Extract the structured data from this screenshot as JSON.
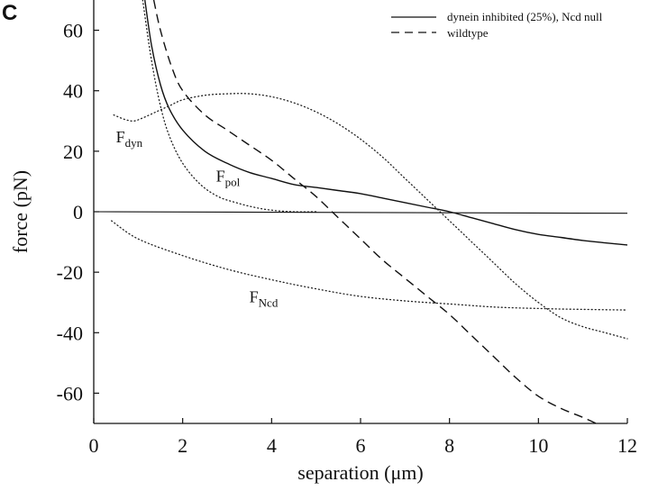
{
  "panel_label": "C",
  "chart_data": {
    "type": "line",
    "title": "",
    "xlabel": "separation (μm)",
    "ylabel": "force (pN)",
    "xlim": [
      0,
      12
    ],
    "ylim": [
      -70,
      70
    ],
    "xticks": [
      0,
      2,
      4,
      6,
      8,
      10,
      12
    ],
    "yticks": [
      60,
      40,
      20,
      0,
      -20,
      -40,
      -60
    ],
    "grid": false,
    "legend_position": "top-right",
    "legend": [
      {
        "label": "dynein inhibited (25%), Ncd null",
        "style": "solid"
      },
      {
        "label": "wildtype",
        "style": "dashed"
      }
    ],
    "series": [
      {
        "name": "dynein inhibited (25%), Ncd null",
        "style": "solid",
        "x": [
          1.15,
          1.3,
          1.5,
          1.7,
          2.0,
          2.5,
          3.0,
          3.5,
          4.0,
          4.5,
          5.0,
          5.5,
          6.0,
          6.5,
          7.0,
          7.5,
          8.0,
          8.5,
          9.0,
          9.5,
          10.0,
          10.5,
          11.0,
          11.5,
          12.0
        ],
        "y": [
          70,
          55,
          42,
          34,
          27,
          20,
          16,
          13,
          11,
          9,
          8,
          7,
          6,
          4.5,
          3,
          1.5,
          0,
          -2,
          -4,
          -6,
          -7.5,
          -8.5,
          -9.5,
          -10.3,
          -11
        ]
      },
      {
        "name": "wildtype",
        "style": "dashed",
        "x": [
          1.35,
          1.5,
          1.75,
          2.0,
          2.5,
          3.0,
          3.5,
          4.0,
          4.5,
          5.0,
          5.5,
          6.0,
          6.5,
          7.0,
          7.5,
          8.0,
          8.5,
          9.0,
          9.5,
          10.0,
          10.5,
          11.0,
          11.3
        ],
        "y": [
          70,
          60,
          48,
          40,
          32,
          27,
          22,
          17,
          11,
          5,
          -2,
          -9,
          -16,
          -22,
          -28,
          -34,
          -41,
          -48,
          -55,
          -61,
          -65,
          -68,
          -70
        ]
      },
      {
        "name": "F_dyn",
        "style": "dotted",
        "x": [
          0.45,
          0.7,
          0.9,
          1.1,
          1.4,
          1.7,
          2.0,
          2.5,
          3.0,
          3.5,
          4.0,
          4.5,
          5.0,
          5.5,
          6.0,
          6.5,
          7.0,
          7.5,
          8.0,
          8.5,
          9.0,
          9.5,
          10.0,
          10.5,
          11.0,
          11.5,
          12.0
        ],
        "y": [
          32,
          30.5,
          30,
          31,
          33,
          35,
          37,
          38.5,
          39,
          39,
          38,
          36,
          33,
          29,
          24,
          18,
          11,
          4,
          -3,
          -10,
          -17,
          -24,
          -30,
          -35,
          -38,
          -40,
          -42
        ]
      },
      {
        "name": "F_pol",
        "style": "dotted",
        "x": [
          1.1,
          1.3,
          1.5,
          1.7,
          2.0,
          2.4,
          2.8,
          3.2,
          3.6,
          4.0,
          4.5,
          5.0
        ],
        "y": [
          70,
          50,
          35,
          25,
          16,
          9,
          5,
          3,
          1.5,
          0.5,
          0,
          0
        ]
      },
      {
        "name": "F_Ncd",
        "style": "dotted",
        "x": [
          0.4,
          1.0,
          2.0,
          3.0,
          4.0,
          5.0,
          6.0,
          7.0,
          8.0,
          9.0,
          10.0,
          11.0,
          12.0
        ],
        "y": [
          -3,
          -9,
          -14.5,
          -19,
          -22.5,
          -25.5,
          -28,
          -29.5,
          -30.5,
          -31.5,
          -32,
          -32.3,
          -32.5
        ]
      },
      {
        "name": "zero",
        "style": "solid-thin",
        "x": [
          0,
          12
        ],
        "y": [
          0,
          -0.5
        ]
      }
    ],
    "annotations": [
      {
        "main": "F",
        "sub": "dyn",
        "x": 0.5,
        "y": 23
      },
      {
        "main": "F",
        "sub": "pol",
        "x": 2.75,
        "y": 10
      },
      {
        "main": "F",
        "sub": "Ncd",
        "x": 3.5,
        "y": -30
      }
    ]
  }
}
